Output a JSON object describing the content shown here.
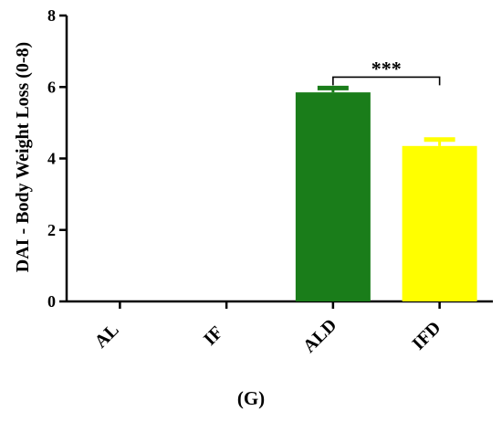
{
  "chart_data": {
    "type": "bar",
    "title": "",
    "xlabel": "",
    "ylabel": "DAI - Body Weight Loss (0-8)",
    "ylim": [
      0,
      8
    ],
    "yticks": [
      0,
      2,
      4,
      6,
      8
    ],
    "categories": [
      "AL",
      "IF",
      "ALD",
      "IFD"
    ],
    "values": [
      0,
      0,
      5.85,
      4.35
    ],
    "errors": [
      0,
      0,
      0.12,
      0.18
    ],
    "colors": [
      "#1a7d1a",
      "#1a7d1a",
      "#1a7d1a",
      "#ffff00"
    ],
    "grid": false,
    "significance": [
      {
        "from": "ALD",
        "to": "IFD",
        "label": "***"
      }
    ]
  },
  "caption": "(G)"
}
